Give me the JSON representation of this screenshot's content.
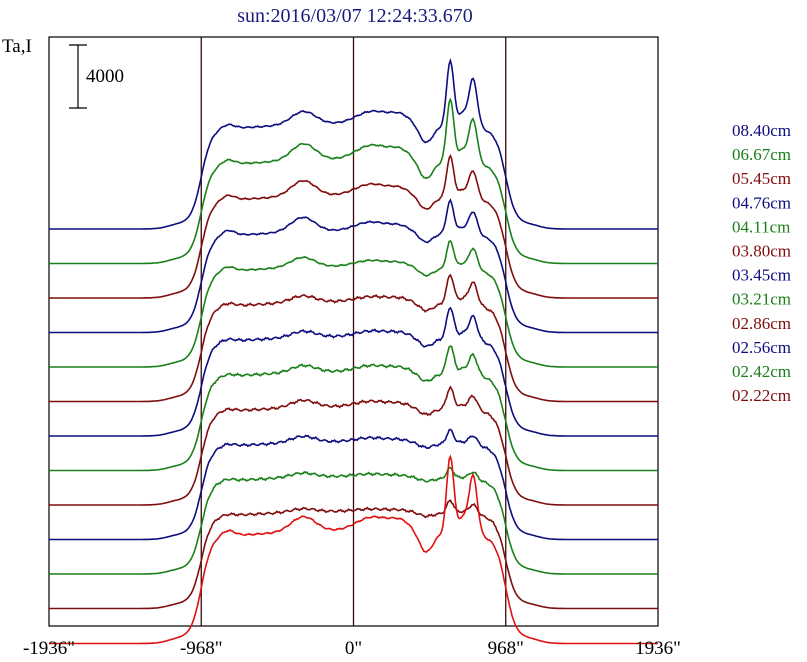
{
  "chart_data": {
    "type": "line",
    "title": "sun:2016/03/07 12:24:33.670",
    "ylabel": "Ta,I",
    "scale_bar_label": "4000",
    "scale_bar_value": 4000,
    "xlim": [
      -1936,
      1936
    ],
    "x_ticks": [
      {
        "value": -1936,
        "label": "-1936\""
      },
      {
        "value": -968,
        "label": "-968\""
      },
      {
        "value": 0,
        "label": "0\""
      },
      {
        "value": 968,
        "label": "968\""
      },
      {
        "value": 1936,
        "label": "1936\""
      }
    ],
    "vlines": [
      -968,
      0,
      968
    ],
    "grid": false,
    "legend_position": "right",
    "series": [
      {
        "name": "08.40cm",
        "color": "#0d0d80",
        "amp": 1.0,
        "limb": 0.85,
        "blend": 0.3,
        "hi": true
      },
      {
        "name": "06.67cm",
        "color": "#1a801a",
        "amp": 0.87,
        "limb": 0.85,
        "blend": 0.3,
        "hi": false
      },
      {
        "name": "05.45cm",
        "color": "#800d0d",
        "amp": 0.75,
        "limb": 0.7,
        "blend": 0.2,
        "hi": false
      },
      {
        "name": "04.76cm",
        "color": "#0d0d80",
        "amp": 0.64,
        "limb": 0.7,
        "blend": 0.15,
        "hi": true
      },
      {
        "name": "04.11cm",
        "color": "#1a801a",
        "amp": 0.56,
        "limb": 0.6,
        "blend": 0.1,
        "hi": false
      },
      {
        "name": "03.80cm",
        "color": "#800d0d",
        "amp": 0.5,
        "limb": 0.5,
        "blend": 0.05,
        "hi": false
      },
      {
        "name": "03.45cm",
        "color": "#0d0d80",
        "amp": 0.45,
        "limb": 0.45,
        "blend": 0.04,
        "hi": false
      },
      {
        "name": "03.21cm",
        "color": "#1a801a",
        "amp": 0.4,
        "limb": 0.4,
        "blend": 0.03,
        "hi": false
      },
      {
        "name": "02.86cm",
        "color": "#800d0d",
        "amp": 0.35,
        "limb": 0.35,
        "blend": 0.02,
        "hi": false
      },
      {
        "name": "02.56cm",
        "color": "#0d0d80",
        "amp": 0.3,
        "limb": 0.3,
        "blend": 0.02,
        "hi": false
      },
      {
        "name": "02.42cm",
        "color": "#1a801a",
        "amp": 0.28,
        "limb": 0.25,
        "blend": 0.02,
        "hi": false
      },
      {
        "name": "02.22cm",
        "color": "#800d0d",
        "amp": 0.25,
        "limb": 0.25,
        "blend": 0.0,
        "hi": false
      }
    ],
    "extra_series": {
      "color": "#e01010"
    }
  }
}
